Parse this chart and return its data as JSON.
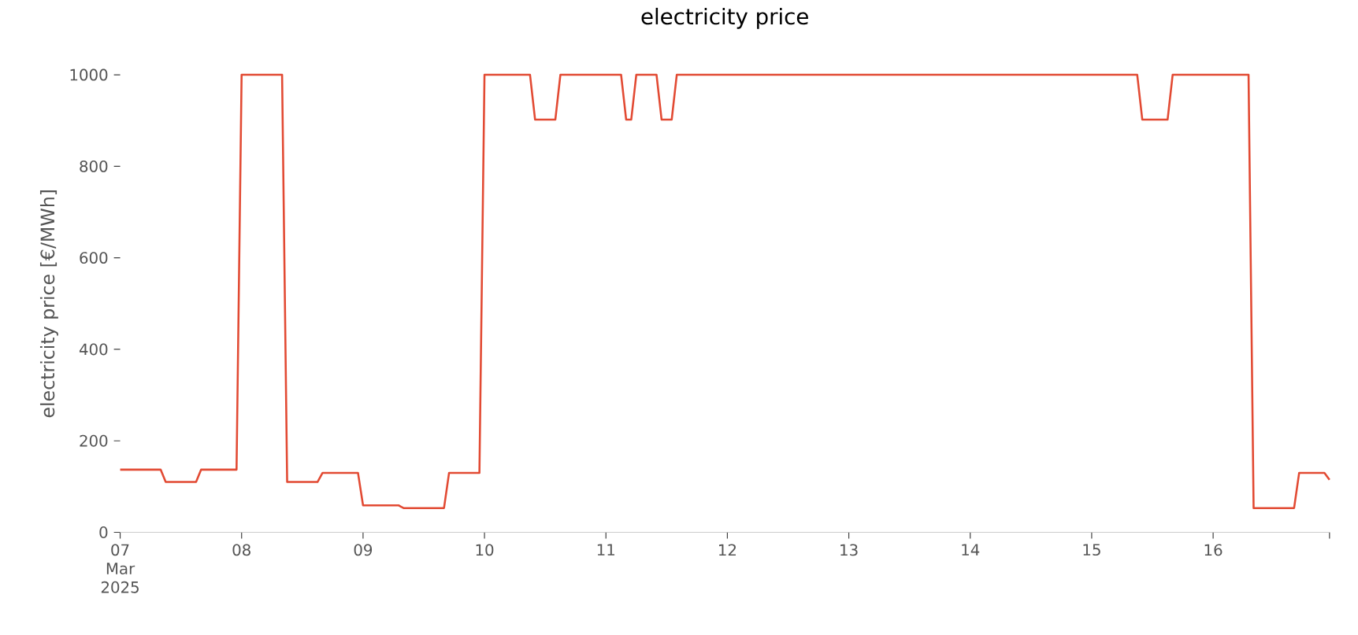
{
  "chart_data": {
    "type": "line",
    "title": "electricity price",
    "ylabel": "electricity price [€/MWh]",
    "x": [
      "2025-03-07T00:00",
      "2025-03-07T08:00",
      "2025-03-07T09:00",
      "2025-03-07T15:00",
      "2025-03-07T16:00",
      "2025-03-07T23:00",
      "2025-03-08T00:00",
      "2025-03-08T08:00",
      "2025-03-08T09:00",
      "2025-03-08T15:00",
      "2025-03-08T16:00",
      "2025-03-08T23:00",
      "2025-03-09T00:00",
      "2025-03-09T07:00",
      "2025-03-09T08:00",
      "2025-03-09T16:00",
      "2025-03-09T17:00",
      "2025-03-09T23:00",
      "2025-03-10T00:00",
      "2025-03-10T09:00",
      "2025-03-10T10:00",
      "2025-03-10T14:00",
      "2025-03-10T15:00",
      "2025-03-11T03:00",
      "2025-03-11T04:00",
      "2025-03-11T05:00",
      "2025-03-11T06:00",
      "2025-03-11T10:00",
      "2025-03-11T11:00",
      "2025-03-11T13:00",
      "2025-03-11T14:00",
      "2025-03-15T09:00",
      "2025-03-15T10:00",
      "2025-03-15T15:00",
      "2025-03-15T16:00",
      "2025-03-16T07:00",
      "2025-03-16T08:00",
      "2025-03-16T16:00",
      "2025-03-16T17:00",
      "2025-03-16T22:00",
      "2025-03-16T23:00"
    ],
    "series": [
      {
        "color": "#e24a33",
        "values": [
          137,
          137,
          110,
          110,
          137,
          137,
          1000,
          1000,
          110,
          110,
          130,
          130,
          59,
          59,
          53,
          53,
          130,
          130,
          1000,
          1000,
          902,
          902,
          1000,
          1000,
          902,
          902,
          1000,
          1000,
          902,
          902,
          1000,
          1000,
          902,
          902,
          1000,
          1000,
          53,
          53,
          130,
          130,
          115
        ]
      }
    ],
    "xlim": [
      "2025-03-07T00:00",
      "2025-03-16T23:00"
    ],
    "xticks": [
      {
        "value": "2025-03-07T00:00",
        "label": "07 Mar 2025"
      },
      {
        "value": "2025-03-08T00:00",
        "label": "08"
      },
      {
        "value": "2025-03-09T00:00",
        "label": "09"
      },
      {
        "value": "2025-03-10T00:00",
        "label": "10"
      },
      {
        "value": "2025-03-11T00:00",
        "label": "11"
      },
      {
        "value": "2025-03-12T00:00",
        "label": "12"
      },
      {
        "value": "2025-03-13T00:00",
        "label": "13"
      },
      {
        "value": "2025-03-14T00:00",
        "label": "14"
      },
      {
        "value": "2025-03-15T00:00",
        "label": "15"
      },
      {
        "value": "2025-03-16T00:00",
        "label": "16"
      },
      {
        "value": "2025-03-16T23:00",
        "label": null
      }
    ],
    "ylim": [
      0,
      1000
    ],
    "yticks": [
      0,
      200,
      400,
      600,
      800,
      1000
    ],
    "line_style": "solid"
  }
}
